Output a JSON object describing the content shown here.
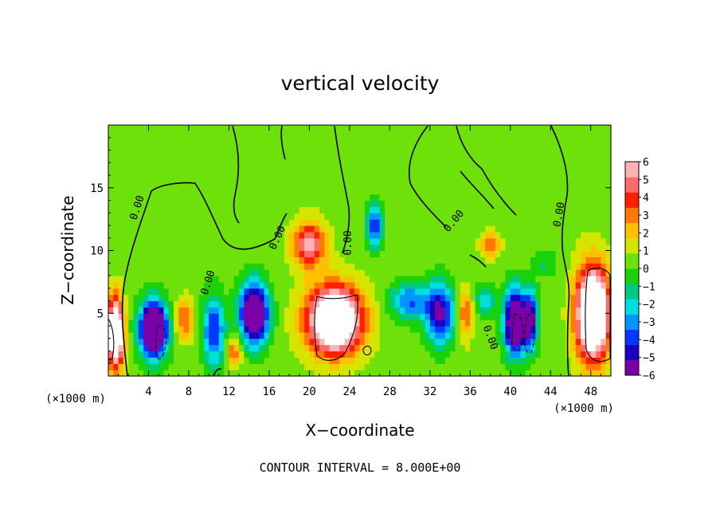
{
  "chart_data": {
    "type": "heatmap",
    "title": "vertical velocity",
    "xlabel": "X−coordinate",
    "ylabel": "Z−coordinate",
    "x_unit": "(×1000 m)",
    "z_unit": "(×1000 m)",
    "contour_interval_text": "CONTOUR INTERVAL = 8.000E+00",
    "contour_label": "0.00",
    "xlim": [
      0,
      50
    ],
    "ylim": [
      0,
      20
    ],
    "x_ticks": [
      4,
      8,
      12,
      16,
      20,
      24,
      28,
      32,
      36,
      40,
      44,
      48
    ],
    "y_ticks": [
      5,
      10,
      15
    ],
    "colorbar": {
      "ticks": [
        "6",
        "5",
        "4",
        "3",
        "2",
        "1",
        "0",
        "−1",
        "−2",
        "−3",
        "−4",
        "−5",
        "−6"
      ],
      "range": [
        -6,
        6
      ],
      "colors": [
        "#7a00a8",
        "#1b00c0",
        "#0038ff",
        "#0096ff",
        "#00dede",
        "#00c887",
        "#19d20a",
        "#6ee10a",
        "#d4e600",
        "#ffc000",
        "#ff7800",
        "#ff1e00",
        "#ff6a6a",
        "#ffb4b4"
      ],
      "over_color": "#ffffff"
    },
    "background_value": 0.5,
    "features": [
      {
        "x": 0.7,
        "z": 3.5,
        "amp": 10,
        "sx": 0.8,
        "sz": 2.6
      },
      {
        "x": 4.5,
        "z": 3.8,
        "amp": -10,
        "sx": 1.4,
        "sz": 2.2
      },
      {
        "x": 7.5,
        "z": 4.5,
        "amp": 3,
        "sx": 1.0,
        "sz": 1.6
      },
      {
        "x": 10.5,
        "z": 3.6,
        "amp": -5,
        "sx": 1.1,
        "sz": 2.8
      },
      {
        "x": 14.5,
        "z": 5.0,
        "amp": -9,
        "sx": 1.4,
        "sz": 2.4
      },
      {
        "x": 12.5,
        "z": 2.0,
        "amp": 3,
        "sx": 0.8,
        "sz": 1.2
      },
      {
        "x": 22.5,
        "z": 4.5,
        "amp": 10,
        "sx": 2.7,
        "sz": 2.6
      },
      {
        "x": 20.0,
        "z": 10.5,
        "amp": 5,
        "sx": 1.6,
        "sz": 1.8
      },
      {
        "x": 26.5,
        "z": 12.0,
        "amp": -5,
        "sx": 0.8,
        "sz": 1.8
      },
      {
        "x": 30.0,
        "z": 6.0,
        "amp": -4,
        "sx": 2.0,
        "sz": 1.5
      },
      {
        "x": 33.0,
        "z": 5.0,
        "amp": -6,
        "sx": 1.4,
        "sz": 2.4
      },
      {
        "x": 35.5,
        "z": 5.0,
        "amp": 3,
        "sx": 0.7,
        "sz": 2.0
      },
      {
        "x": 37.5,
        "z": 6.0,
        "amp": -3,
        "sx": 0.9,
        "sz": 1.3
      },
      {
        "x": 40.5,
        "z": 4.3,
        "amp": -9,
        "sx": 1.1,
        "sz": 2.6
      },
      {
        "x": 42.0,
        "z": 4.5,
        "amp": -6,
        "sx": 0.7,
        "sz": 2.3
      },
      {
        "x": 38.0,
        "z": 10.5,
        "amp": 2.5,
        "sx": 1.0,
        "sz": 1.0
      },
      {
        "x": 48.2,
        "z": 5.0,
        "amp": 11,
        "sx": 1.6,
        "sz": 3.6
      },
      {
        "x": 43.5,
        "z": 9.0,
        "amp": -1.5,
        "sx": 1.2,
        "sz": 1.0
      }
    ]
  }
}
